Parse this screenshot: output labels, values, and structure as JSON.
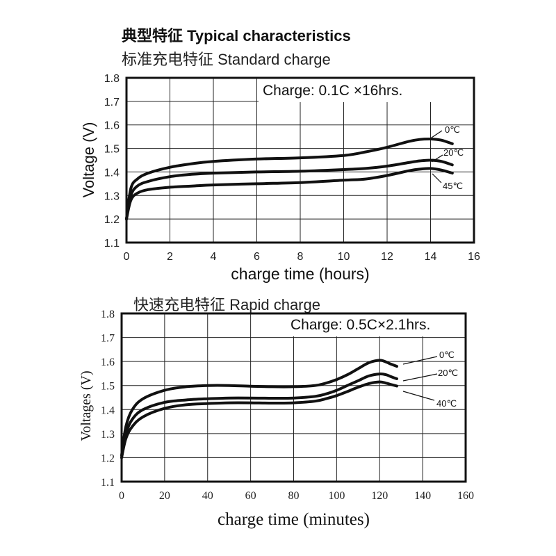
{
  "page": {
    "title": "典型特征 Typical characteristics"
  },
  "chart_data": [
    {
      "type": "line",
      "title": "标准充电特征 Standard charge",
      "condition": "Charge: 0.1C  ×16hrs.",
      "xlabel": "charge time (hours)",
      "ylabel": "Voltage (V)",
      "xlim": [
        0,
        16
      ],
      "ylim": [
        1.1,
        1.8
      ],
      "xticks": [
        "0",
        "2",
        "4",
        "6",
        "8",
        "10",
        "12",
        "14",
        "16"
      ],
      "yticks": [
        "1.1",
        "1.2",
        "1.3",
        "1.4",
        "1.5",
        "1.6",
        "1.7",
        "1.8"
      ],
      "series": [
        {
          "name": "0℃",
          "x": [
            0,
            0.2,
            0.5,
            1,
            2,
            3,
            4,
            6,
            8,
            10,
            11,
            12,
            13,
            13.5,
            14,
            14.5,
            15
          ],
          "y": [
            1.2,
            1.33,
            1.37,
            1.395,
            1.42,
            1.435,
            1.445,
            1.455,
            1.46,
            1.47,
            1.485,
            1.505,
            1.53,
            1.538,
            1.54,
            1.535,
            1.52
          ]
        },
        {
          "name": "20℃",
          "x": [
            0,
            0.2,
            0.5,
            1,
            2,
            3,
            4,
            6,
            8,
            10,
            11,
            12,
            13,
            13.5,
            14,
            14.5,
            15
          ],
          "y": [
            1.2,
            1.3,
            1.34,
            1.36,
            1.38,
            1.39,
            1.395,
            1.4,
            1.403,
            1.41,
            1.415,
            1.425,
            1.44,
            1.447,
            1.45,
            1.445,
            1.43
          ]
        },
        {
          "name": "45℃",
          "x": [
            0,
            0.2,
            0.5,
            1,
            2,
            3,
            4,
            6,
            8,
            10,
            11,
            12,
            13,
            13.5,
            14,
            14.5,
            15
          ],
          "y": [
            1.2,
            1.28,
            1.31,
            1.325,
            1.335,
            1.34,
            1.345,
            1.35,
            1.355,
            1.365,
            1.37,
            1.385,
            1.405,
            1.412,
            1.415,
            1.408,
            1.395
          ]
        }
      ],
      "legend": "line labels at right end of curves"
    },
    {
      "type": "line",
      "title": "快速充电特征 Rapid charge",
      "condition": "Charge: 0.5C×2.1hrs.",
      "xlabel": "charge time (minutes)",
      "ylabel": "Voltages (V)",
      "xlim": [
        0,
        160
      ],
      "ylim": [
        1.1,
        1.8
      ],
      "xticks": [
        "0",
        "20",
        "40",
        "60",
        "80",
        "100",
        "120",
        "140",
        "160"
      ],
      "yticks": [
        "1.1",
        "1.2",
        "1.3",
        "1.4",
        "1.5",
        "1.6",
        "1.7",
        "1.8"
      ],
      "series": [
        {
          "name": "0℃",
          "x": [
            0,
            2,
            5,
            10,
            20,
            30,
            40,
            50,
            60,
            70,
            80,
            90,
            95,
            100,
            105,
            110,
            115,
            120,
            123,
            125,
            128
          ],
          "y": [
            1.21,
            1.33,
            1.4,
            1.445,
            1.48,
            1.495,
            1.5,
            1.5,
            1.497,
            1.495,
            1.495,
            1.5,
            1.51,
            1.525,
            1.545,
            1.57,
            1.595,
            1.605,
            1.598,
            1.59,
            1.58
          ]
        },
        {
          "name": "20℃",
          "x": [
            0,
            2,
            5,
            10,
            20,
            30,
            40,
            50,
            60,
            70,
            80,
            90,
            95,
            100,
            105,
            110,
            115,
            120,
            123,
            125,
            128
          ],
          "y": [
            1.2,
            1.3,
            1.36,
            1.4,
            1.43,
            1.44,
            1.445,
            1.448,
            1.448,
            1.447,
            1.448,
            1.455,
            1.465,
            1.48,
            1.5,
            1.52,
            1.54,
            1.548,
            1.545,
            1.538,
            1.528
          ]
        },
        {
          "name": "40℃",
          "x": [
            0,
            2,
            5,
            10,
            20,
            30,
            40,
            50,
            60,
            70,
            80,
            90,
            95,
            100,
            105,
            110,
            115,
            120,
            123,
            125,
            128
          ],
          "y": [
            1.2,
            1.28,
            1.33,
            1.37,
            1.405,
            1.42,
            1.425,
            1.428,
            1.428,
            1.427,
            1.428,
            1.435,
            1.445,
            1.458,
            1.475,
            1.493,
            1.508,
            1.515,
            1.51,
            1.505,
            1.498
          ]
        }
      ],
      "legend": "line labels at right end of curves"
    }
  ]
}
